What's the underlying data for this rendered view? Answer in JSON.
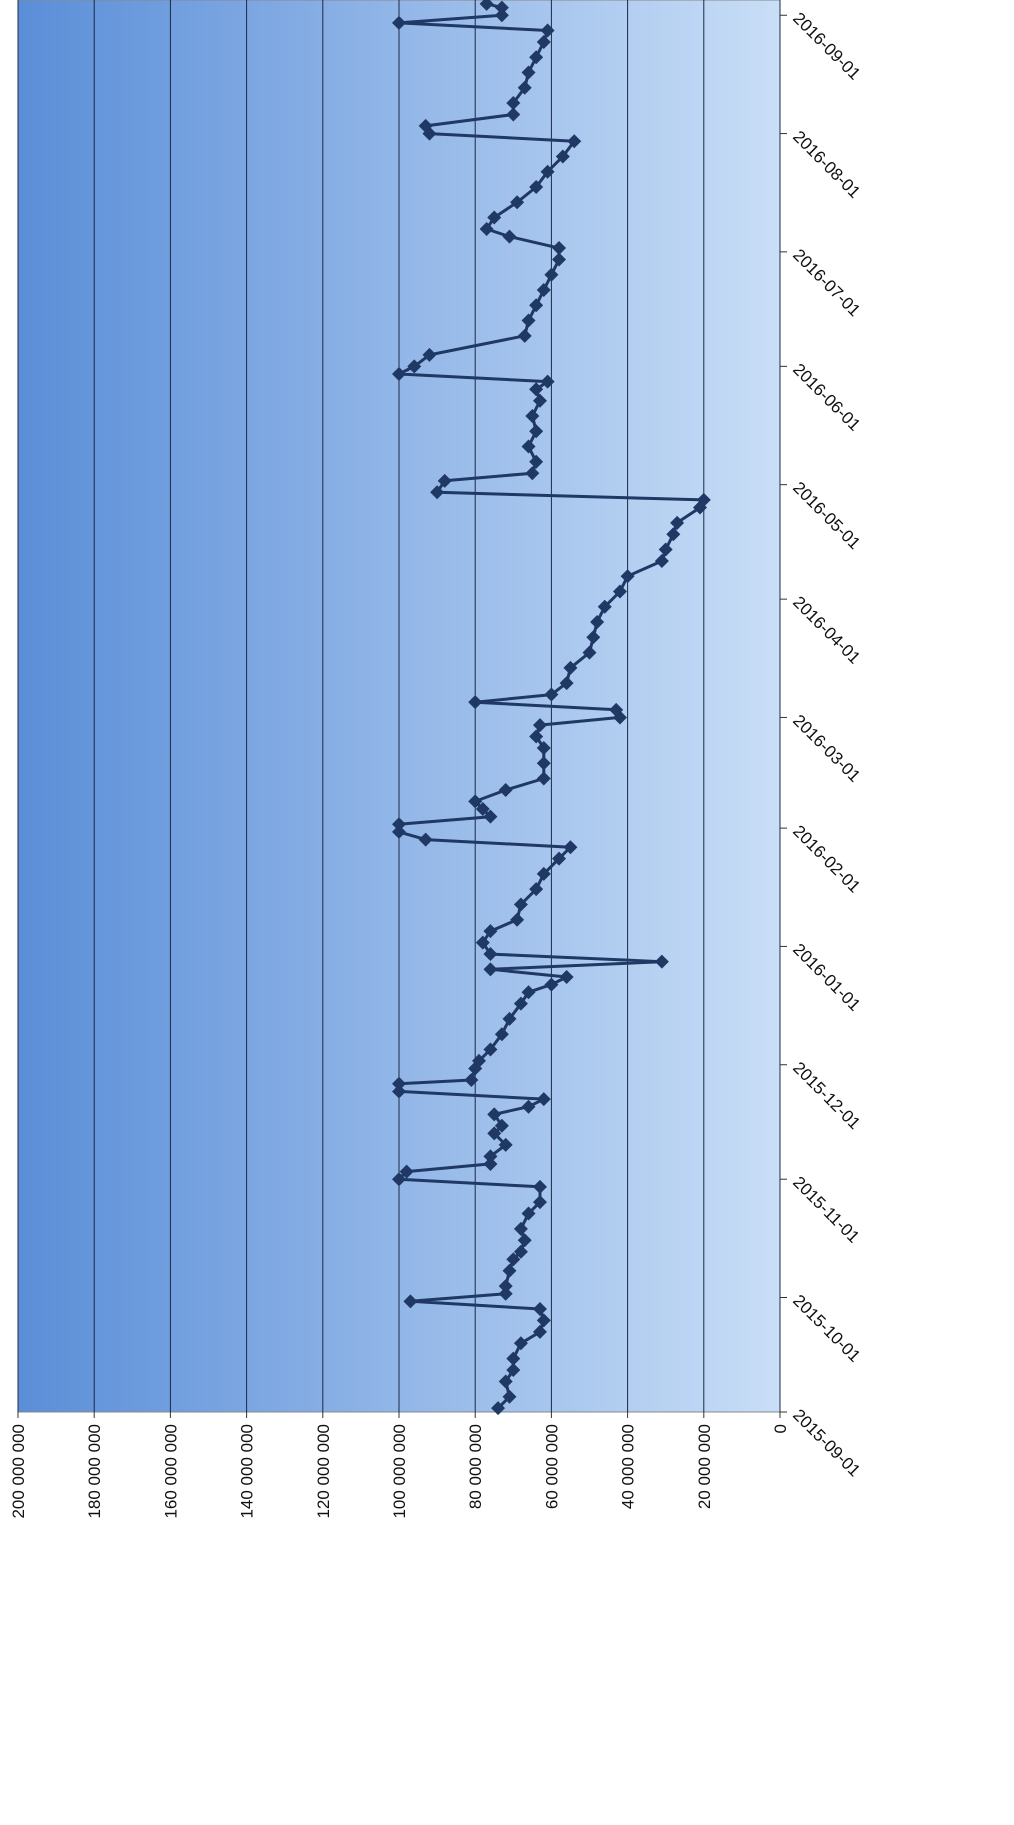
{
  "chart_data": {
    "type": "line",
    "color": "#1f3864",
    "grid": true,
    "xlim": [
      "2015-09-01",
      "2016-09-05"
    ],
    "xticks": [
      "2015-09-01",
      "2015-10-01",
      "2015-11-01",
      "2015-12-01",
      "2016-01-01",
      "2016-02-01",
      "2016-03-01",
      "2016-04-01",
      "2016-05-01",
      "2016-06-01",
      "2016-07-01",
      "2016-08-01",
      "2016-09-01"
    ],
    "ylim": [
      0,
      200000000
    ],
    "yticks": [
      0,
      {
        "value": 20000000,
        "label": "20 000 000"
      },
      {
        "value": 40000000,
        "label": "40 000 000"
      },
      {
        "value": 60000000,
        "label": "60 000 000"
      },
      {
        "value": 80000000,
        "label": "80 000 000"
      },
      {
        "value": 100000000,
        "label": "100 000 000"
      },
      {
        "value": 120000000,
        "label": "120 000 000"
      },
      {
        "value": 140000000,
        "label": "140 000 000"
      },
      {
        "value": 160000000,
        "label": "160 000 000"
      },
      {
        "value": 180000000,
        "label": "180 000 000"
      },
      {
        "value": 200000000,
        "label": "200 000 000"
      }
    ],
    "x": [
      "2015-09-02",
      "2015-09-05",
      "2015-09-09",
      "2015-09-12",
      "2015-09-15",
      "2015-09-19",
      "2015-09-22",
      "2015-09-25",
      "2015-09-28",
      "2015-09-30",
      "2015-10-02",
      "2015-10-04",
      "2015-10-08",
      "2015-10-11",
      "2015-10-13",
      "2015-10-16",
      "2015-10-19",
      "2015-10-23",
      "2015-10-26",
      "2015-10-30",
      "2015-11-01",
      "2015-11-03",
      "2015-11-05",
      "2015-11-07",
      "2015-11-10",
      "2015-11-13",
      "2015-11-15",
      "2015-11-18",
      "2015-11-20",
      "2015-11-22",
      "2015-11-24",
      "2015-11-26",
      "2015-11-27",
      "2015-11-30",
      "2015-12-02",
      "2015-12-05",
      "2015-12-09",
      "2015-12-13",
      "2015-12-17",
      "2015-12-20",
      "2015-12-22",
      "2015-12-24",
      "2015-12-26",
      "2015-12-28",
      "2015-12-30",
      "2016-01-02",
      "2016-01-05",
      "2016-01-08",
      "2016-01-12",
      "2016-01-16",
      "2016-01-20",
      "2016-01-24",
      "2016-01-27",
      "2016-01-29",
      "2016-01-31",
      "2016-02-02",
      "2016-02-04",
      "2016-02-06",
      "2016-02-08",
      "2016-02-11",
      "2016-02-14",
      "2016-02-18",
      "2016-02-22",
      "2016-02-25",
      "2016-02-28",
      "2016-03-01",
      "2016-03-03",
      "2016-03-05",
      "2016-03-07",
      "2016-03-10",
      "2016-03-14",
      "2016-03-18",
      "2016-03-22",
      "2016-03-26",
      "2016-03-30",
      "2016-04-03",
      "2016-04-07",
      "2016-04-11",
      "2016-04-14",
      "2016-04-18",
      "2016-04-21",
      "2016-04-25",
      "2016-04-27",
      "2016-04-29",
      "2016-05-02",
      "2016-05-04",
      "2016-05-07",
      "2016-05-11",
      "2016-05-15",
      "2016-05-19",
      "2016-05-23",
      "2016-05-26",
      "2016-05-28",
      "2016-05-30",
      "2016-06-01",
      "2016-06-04",
      "2016-06-09",
      "2016-06-13",
      "2016-06-17",
      "2016-06-21",
      "2016-06-25",
      "2016-06-29",
      "2016-07-02",
      "2016-07-05",
      "2016-07-07",
      "2016-07-10",
      "2016-07-14",
      "2016-07-18",
      "2016-07-22",
      "2016-07-26",
      "2016-07-30",
      "2016-08-01",
      "2016-08-03",
      "2016-08-06",
      "2016-08-09",
      "2016-08-13",
      "2016-08-17",
      "2016-08-21",
      "2016-08-25",
      "2016-08-28",
      "2016-08-30",
      "2016-09-01",
      "2016-09-03",
      "2016-09-04"
    ],
    "values": [
      74000000,
      71000000,
      72000000,
      70000000,
      70000000,
      68000000,
      63000000,
      62000000,
      63000000,
      97000000,
      72000000,
      72000000,
      71000000,
      70000000,
      68000000,
      67000000,
      68000000,
      66000000,
      63000000,
      63000000,
      100000000,
      98000000,
      76000000,
      76000000,
      72000000,
      75000000,
      73000000,
      75000000,
      66000000,
      62000000,
      100000000,
      100000000,
      81000000,
      80000000,
      79000000,
      76000000,
      73000000,
      71000000,
      68000000,
      66000000,
      60000000,
      56000000,
      76000000,
      31000000,
      76000000,
      78000000,
      76000000,
      69000000,
      68000000,
      64000000,
      62000000,
      58000000,
      55000000,
      93000000,
      100000000,
      100000000,
      76000000,
      78000000,
      80000000,
      72000000,
      62000000,
      62000000,
      62000000,
      64000000,
      63000000,
      42000000,
      43000000,
      80000000,
      60000000,
      56000000,
      55000000,
      50000000,
      49000000,
      48000000,
      46000000,
      42000000,
      40000000,
      31000000,
      30000000,
      28000000,
      27000000,
      21000000,
      20000000,
      90000000,
      88000000,
      65000000,
      64000000,
      66000000,
      64000000,
      65000000,
      63000000,
      64000000,
      61000000,
      100000000,
      96000000,
      92000000,
      67000000,
      66000000,
      64000000,
      62000000,
      60000000,
      58000000,
      58000000,
      71000000,
      77000000,
      75000000,
      69000000,
      64000000,
      61000000,
      57000000,
      54000000,
      92000000,
      93000000,
      70000000,
      70000000,
      67000000,
      66000000,
      64000000,
      62000000,
      61000000,
      100000000,
      73000000,
      73000000,
      77000000
    ]
  }
}
